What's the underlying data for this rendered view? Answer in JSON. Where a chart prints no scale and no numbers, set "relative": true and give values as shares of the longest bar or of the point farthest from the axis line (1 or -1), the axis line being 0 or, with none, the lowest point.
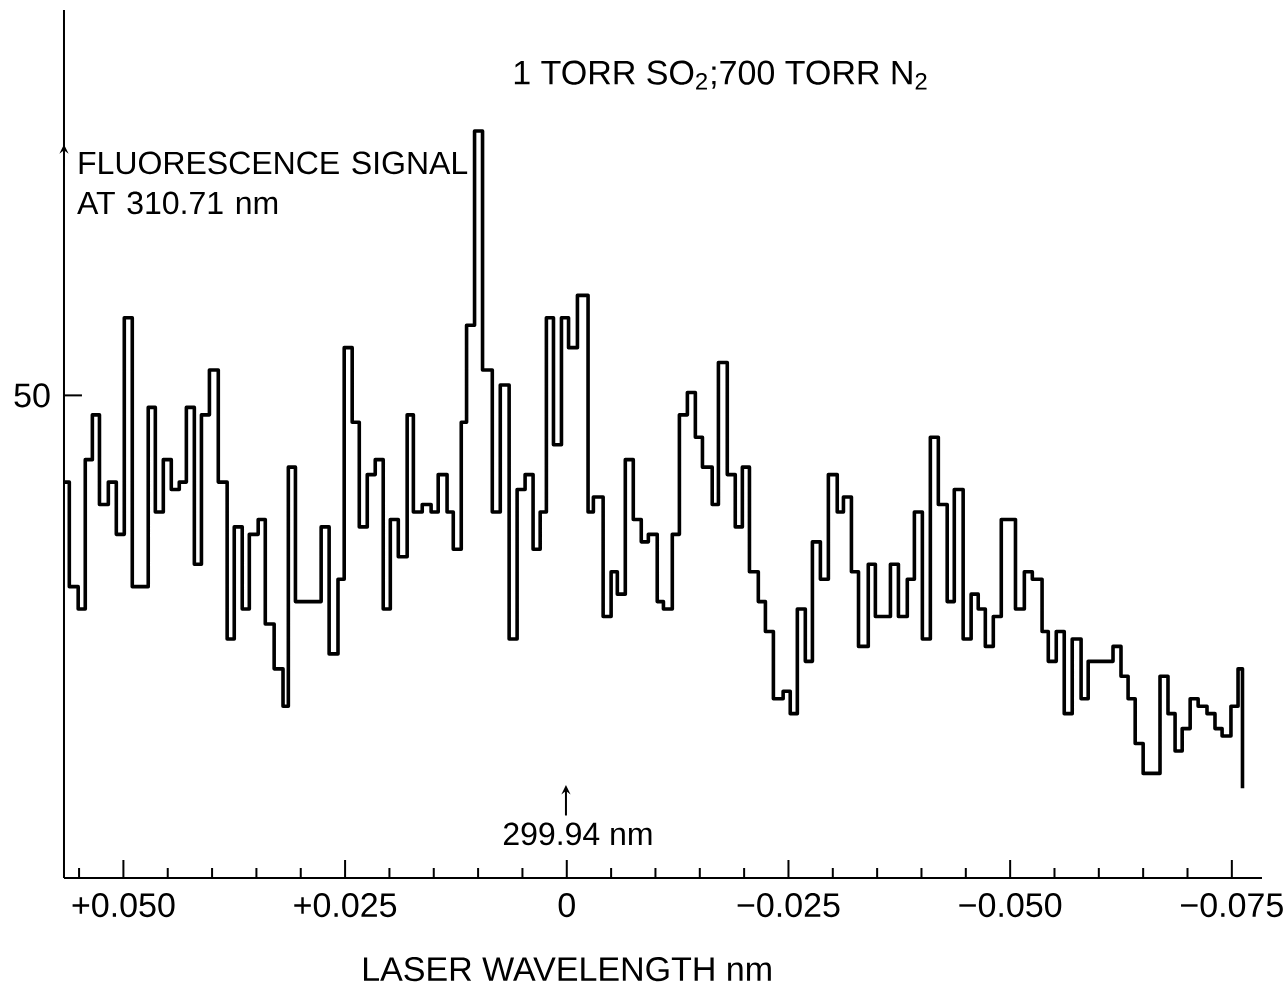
{
  "chart_data": {
    "type": "step",
    "title": "1 TORR SO$_{2}$;700 TORR N$_{2}$",
    "xlabel": "LASER WAVELENGTH nm",
    "ylabel": "FLUORESCENCE SIGNAL AT 310.71 nm",
    "relative": true,
    "color": "#000000",
    "x": [
      0.0566,
      0.0561,
      0.0551,
      0.0543,
      0.0535,
      0.0527,
      0.0517,
      0.0508,
      0.0499,
      0.049,
      0.0472,
      0.0464,
      0.0455,
      0.0446,
      0.0437,
      0.0429,
      0.042,
      0.0412,
      0.0403,
      0.0393,
      0.0383,
      0.0375,
      0.0366,
      0.0358,
      0.0348,
      0.034,
      0.033,
      0.032,
      0.0314,
      0.0306,
      0.0277,
      0.0268,
      0.0258,
      0.0251,
      0.0242,
      0.0234,
      0.0225,
      0.0216,
      0.0207,
      0.0199,
      0.019,
      0.018,
      0.0173,
      0.0163,
      0.0153,
      0.0145,
      0.0135,
      0.0128,
      0.0119,
      0.0113,
      0.0104,
      0.0095,
      0.0084,
      0.0075,
      0.0065,
      0.0056,
      0.0047,
      0.0038,
      0.003,
      0.0023,
      0.0015,
      0.0006,
      -0.0002,
      -0.0012,
      -0.0024,
      -0.003,
      -0.0041,
      -0.005,
      -0.0057,
      -0.0066,
      -0.0075,
      -0.0084,
      -0.0092,
      -0.0102,
      -0.0109,
      -0.0119,
      -0.0127,
      -0.0136,
      -0.0145,
      -0.0153,
      -0.0164,
      -0.0171,
      -0.0181,
      -0.019,
      -0.0198,
      -0.0206,
      -0.0216,
      -0.0224,
      -0.0233,
      -0.0244,
      -0.0252,
      -0.026,
      -0.0269,
      -0.0277,
      -0.0286,
      -0.0295,
      -0.0305,
      -0.0312,
      -0.0321,
      -0.0329,
      -0.034,
      -0.0348,
      -0.0365,
      -0.0374,
      -0.0384,
      -0.0392,
      -0.0401,
      -0.041,
      -0.0419,
      -0.0429,
      -0.0437,
      -0.0447,
      -0.0456,
      -0.0464,
      -0.0472,
      -0.0481,
      -0.049,
      -0.0506,
      -0.0516,
      -0.0525,
      -0.0536,
      -0.0543,
      -0.0552,
      -0.0561,
      -0.057,
      -0.058,
      -0.0588,
      -0.0616,
      -0.0625,
      -0.0633,
      -0.0641,
      -0.065,
      -0.0669,
      -0.0678,
      -0.0686,
      -0.0694,
      -0.0703,
      -0.0712,
      -0.0722,
      -0.0731,
      -0.0739,
      -0.0749,
      -0.0757,
      -0.0762
    ],
    "values": [
      0.53,
      0.39,
      0.36,
      0.56,
      0.62,
      0.5,
      0.53,
      0.46,
      0.75,
      0.39,
      0.63,
      0.49,
      0.56,
      0.52,
      0.53,
      0.63,
      0.42,
      0.62,
      0.68,
      0.53,
      0.32,
      0.47,
      0.36,
      0.46,
      0.48,
      0.34,
      0.28,
      0.23,
      0.55,
      0.37,
      0.47,
      0.3,
      0.4,
      0.71,
      0.61,
      0.47,
      0.54,
      0.56,
      0.36,
      0.48,
      0.43,
      0.62,
      0.49,
      0.5,
      0.49,
      0.54,
      0.49,
      0.44,
      0.61,
      0.74,
      1,
      0.68,
      0.49,
      0.66,
      0.32,
      0.52,
      0.54,
      0.44,
      0.49,
      0.75,
      0.58,
      0.75,
      0.71,
      0.78,
      0.49,
      0.51,
      0.35,
      0.41,
      0.38,
      0.56,
      0.48,
      0.45,
      0.46,
      0.37,
      0.36,
      0.46,
      0.62,
      0.65,
      0.59,
      0.55,
      0.5,
      0.69,
      0.54,
      0.47,
      0.55,
      0.41,
      0.37,
      0.33,
      0.24,
      0.25,
      0.22,
      0.36,
      0.29,
      0.45,
      0.4,
      0.54,
      0.49,
      0.51,
      0.41,
      0.31,
      0.42,
      0.35,
      0.42,
      0.35,
      0.4,
      0.49,
      0.32,
      0.59,
      0.5,
      0.37,
      0.52,
      0.32,
      0.38,
      0.36,
      0.31,
      0.35,
      0.48,
      0.36,
      0.41,
      0.4,
      0.33,
      0.29,
      0.33,
      0.22,
      0.32,
      0.24,
      0.29,
      0.31,
      0.27,
      0.24,
      0.18,
      0.14,
      0.27,
      0.22,
      0.17,
      0.2,
      0.24,
      0.23,
      0.22,
      0.2,
      0.19,
      0.23,
      0.28,
      0.12
    ],
    "xlim": [
      0.0567,
      -0.0784
    ],
    "xticks": [
      {
        "value": 0.055,
        "label": null
      },
      {
        "value": 0.05,
        "label": "+0.050"
      },
      {
        "value": 0.045,
        "label": null
      },
      {
        "value": 0.04,
        "label": null
      },
      {
        "value": 0.035,
        "label": null
      },
      {
        "value": 0.03,
        "label": null
      },
      {
        "value": 0.025,
        "label": "+0.025"
      },
      {
        "value": 0.02,
        "label": null
      },
      {
        "value": 0.015,
        "label": null
      },
      {
        "value": 0.01,
        "label": null
      },
      {
        "value": 0.005,
        "label": null
      },
      0,
      {
        "value": -0.005,
        "label": null
      },
      {
        "value": -0.01,
        "label": null
      },
      {
        "value": -0.015,
        "label": null
      },
      {
        "value": -0.02,
        "label": null
      },
      {
        "value": -0.025,
        "label": "−0.025"
      },
      {
        "value": -0.03,
        "label": null
      },
      {
        "value": -0.035,
        "label": null
      },
      {
        "value": -0.04,
        "label": null
      },
      {
        "value": -0.045,
        "label": null
      },
      {
        "value": -0.05,
        "label": "−0.050"
      },
      {
        "value": -0.055,
        "label": null
      },
      {
        "value": -0.06,
        "label": null
      },
      {
        "value": -0.065,
        "label": null
      },
      {
        "value": -0.07,
        "label": null
      },
      {
        "value": -0.075,
        "label": "−0.075"
      }
    ],
    "annotations": [
      "50",
      "299.94 nm"
    ]
  }
}
